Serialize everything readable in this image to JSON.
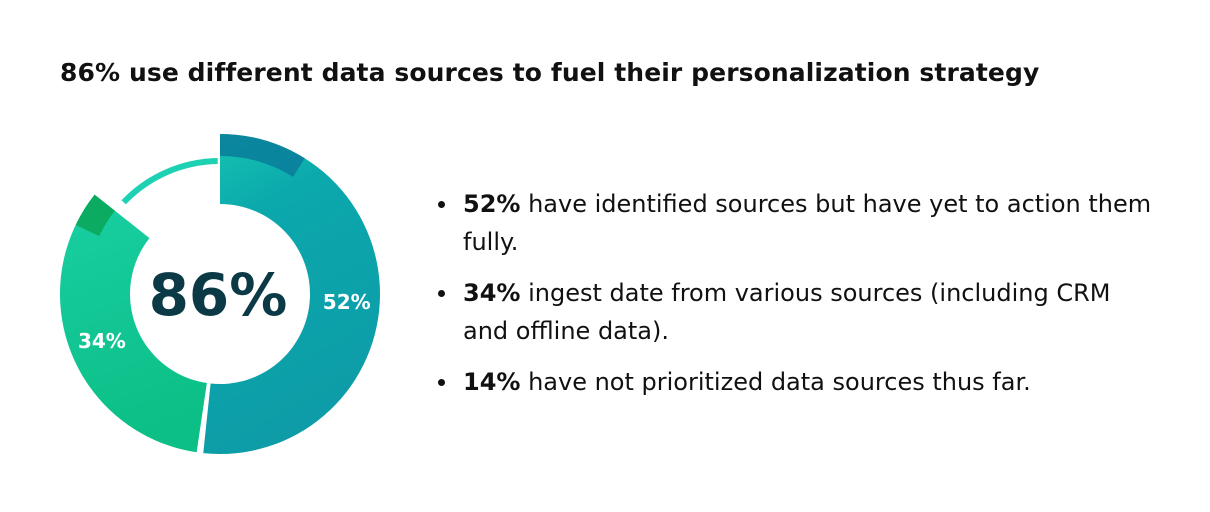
{
  "chart_data": {
    "type": "pie",
    "variant": "donut",
    "title": "86% use different data sources to fuel their personalization strategy",
    "center_label": "86%",
    "slices": [
      {
        "label": "52%",
        "value": 52,
        "color": "#0b9ea7"
      },
      {
        "label": "34%",
        "value": 34,
        "color": "#10c18e"
      },
      {
        "label": "",
        "value": 14,
        "color": "#1dd1b2",
        "style": "thin-ring"
      }
    ],
    "accent_colors": [
      "#0a7f9c",
      "#0aa95a"
    ]
  },
  "bullets": [
    {
      "bold": "52%",
      "text": " have identified sources but have yet to action them fully."
    },
    {
      "bold": "34%",
      "text": " ingest date from various sources (including CRM and offline data)."
    },
    {
      "bold": "14%",
      "text": " have not prioritized data sources thus far."
    }
  ]
}
